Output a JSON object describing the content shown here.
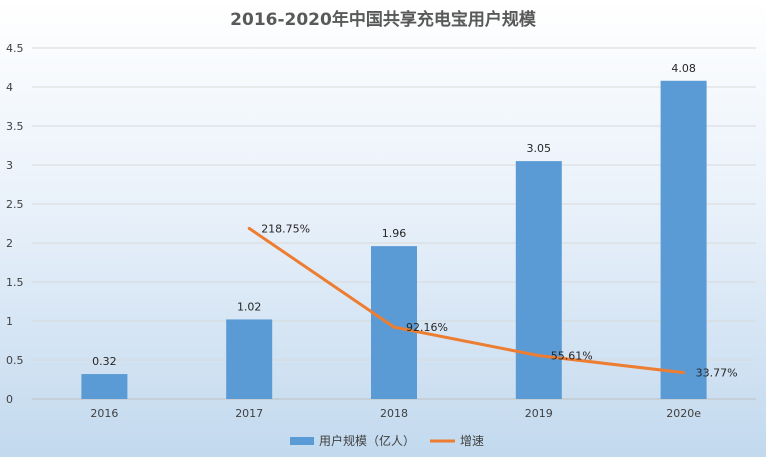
{
  "chart_data": {
    "type": "bar",
    "title": "2016-2020年中国共享充电宝用户规模",
    "categories": [
      "2016",
      "2017",
      "2018",
      "2019",
      "2020e"
    ],
    "ylim": [
      0,
      4.5
    ],
    "yticks": [
      "0",
      "0.5",
      "1",
      "1.5",
      "2",
      "2.5",
      "3",
      "3.5",
      "4",
      "4.5"
    ],
    "grid": true,
    "legend_position": "bottom",
    "series": [
      {
        "name": "用户规模（亿人）",
        "type": "bar",
        "values": [
          0.32,
          1.02,
          1.96,
          3.05,
          4.08
        ],
        "labels": [
          "0.32",
          "1.02",
          "1.96",
          "3.05",
          "4.08"
        ],
        "color": "#5b9bd5"
      },
      {
        "name": "增速",
        "type": "line",
        "values": [
          null,
          218.75,
          92.16,
          55.61,
          33.77
        ],
        "labels": [
          "",
          "218.75%",
          "92.16%",
          "55.61%",
          "33.77%"
        ],
        "color": "#ed7d31"
      }
    ]
  }
}
